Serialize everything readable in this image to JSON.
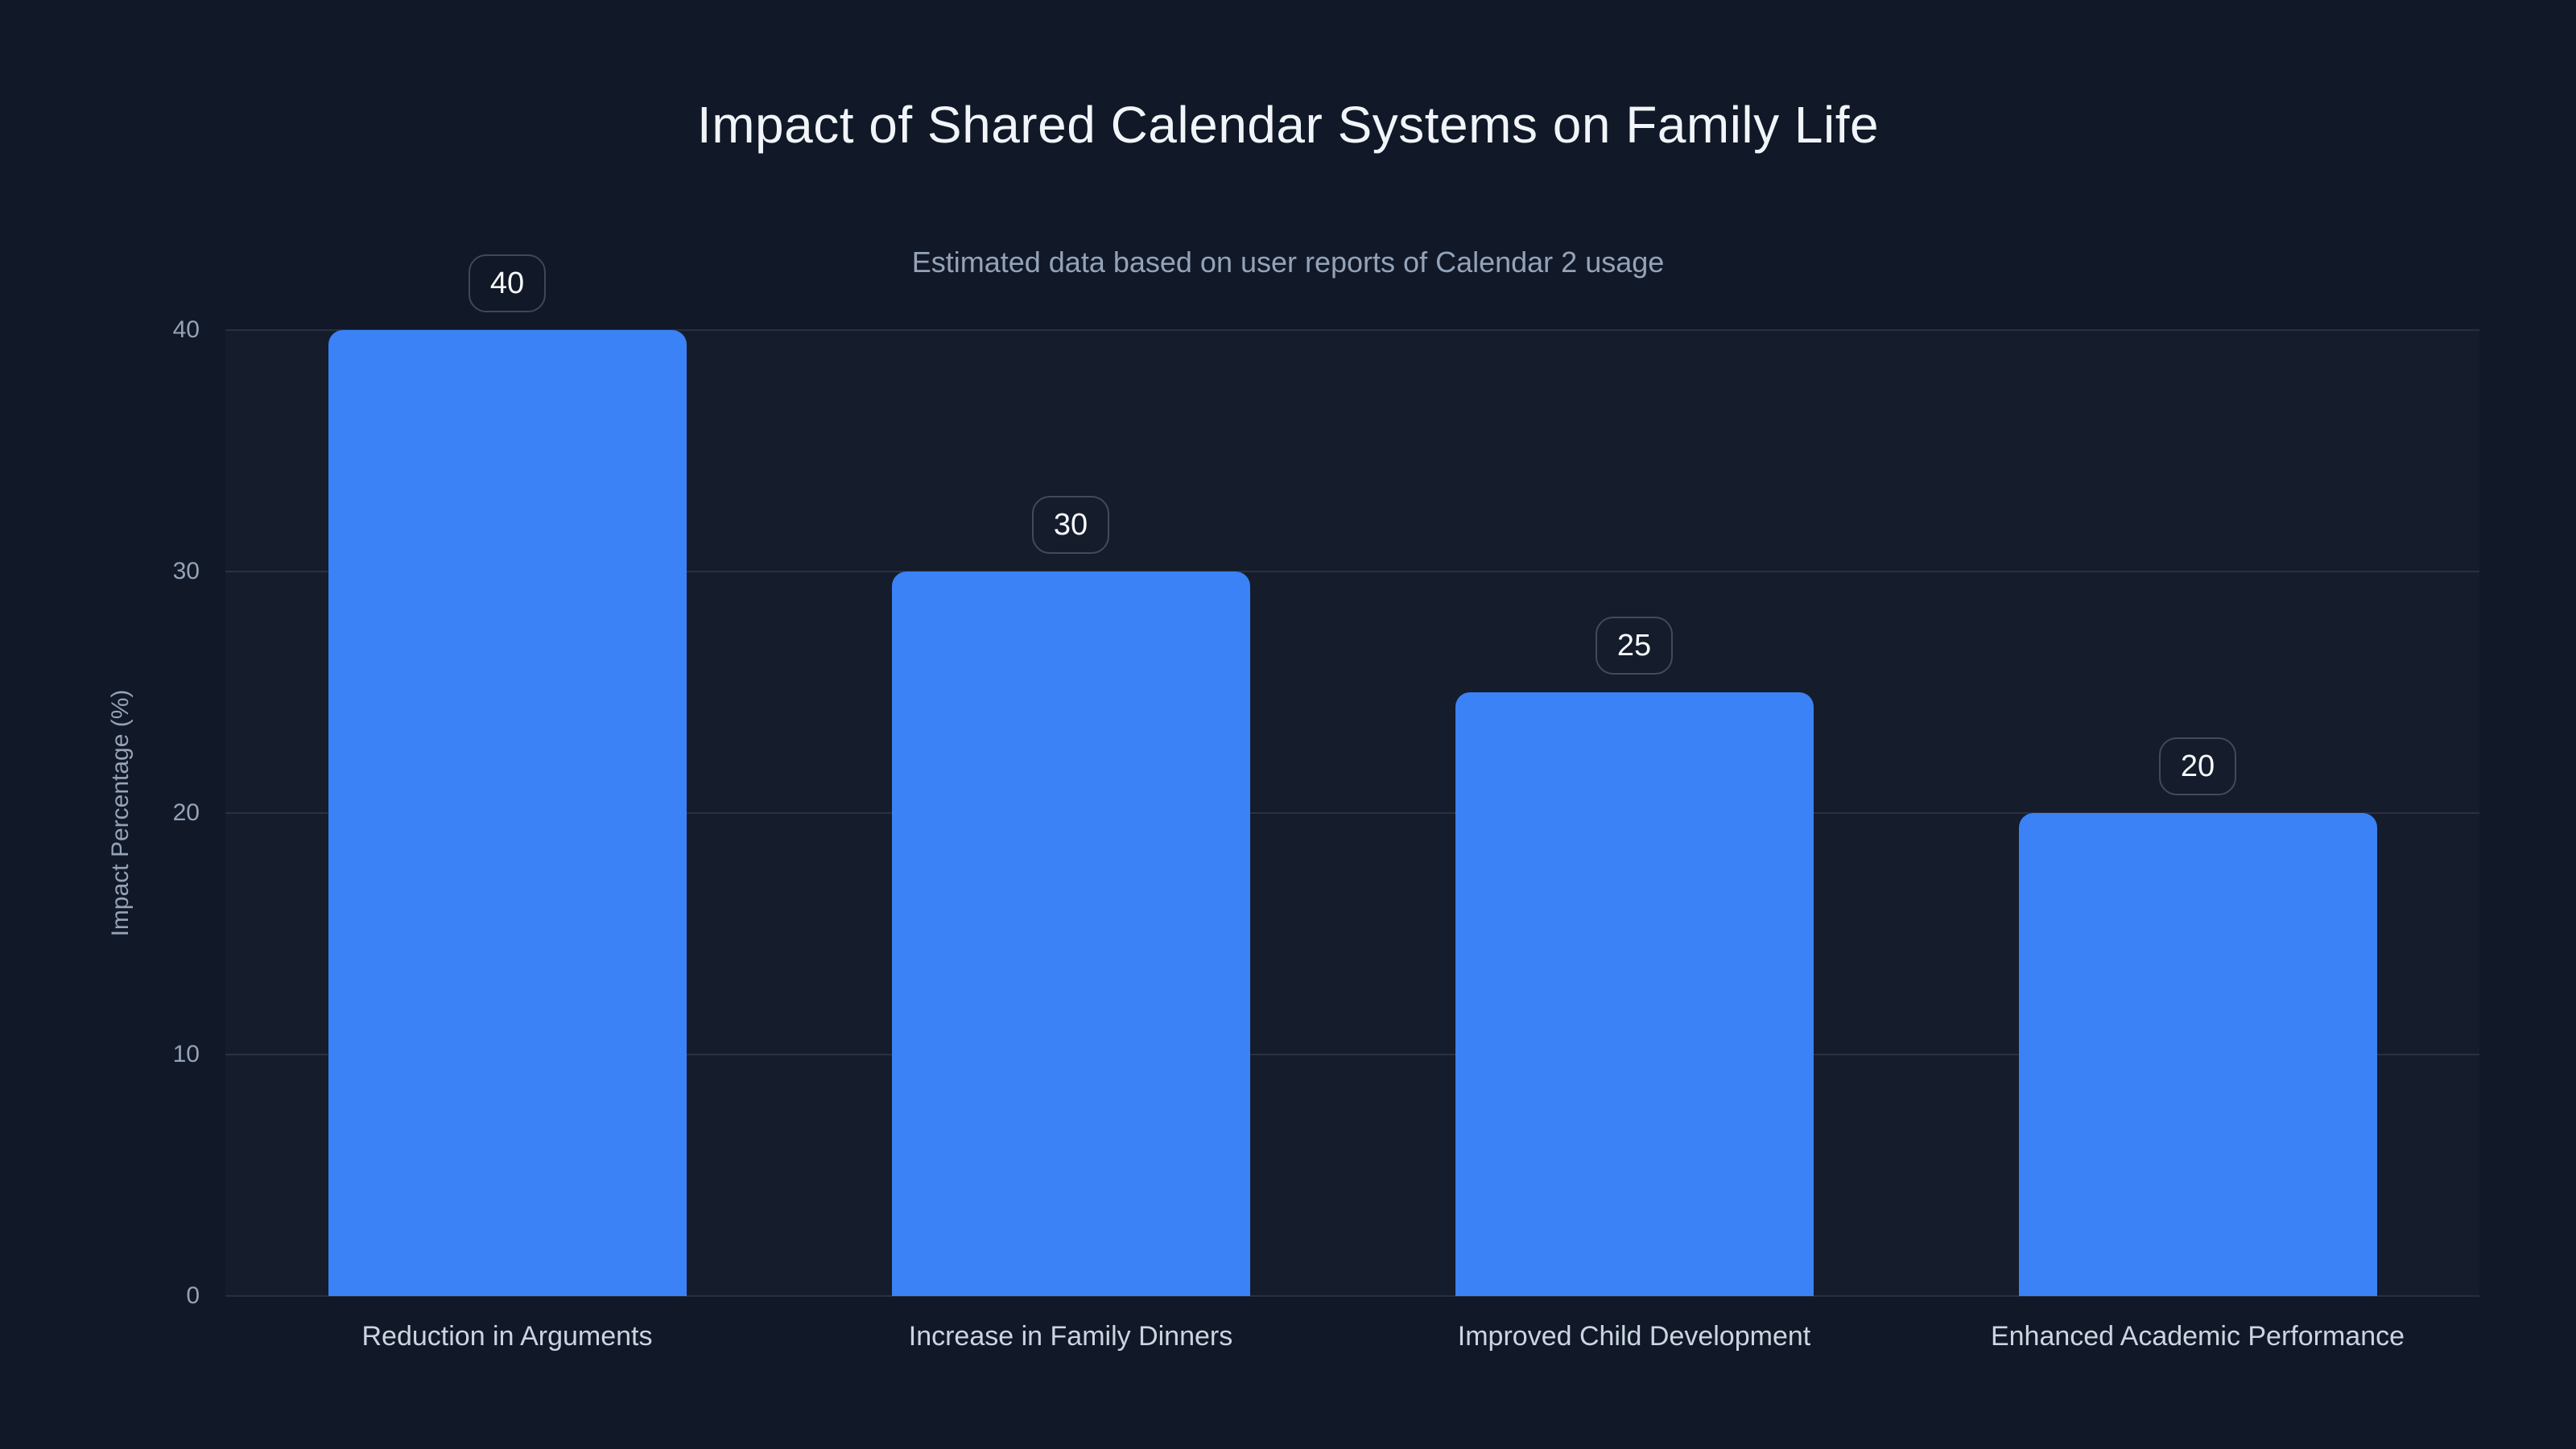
{
  "chart_data": {
    "type": "bar",
    "title": "Impact of Shared Calendar Systems on Family Life",
    "subtitle": "Estimated data based on user reports of Calendar 2 usage",
    "ylabel": "Impact Percentage (%)",
    "xlabel": "",
    "categories": [
      "Reduction in Arguments",
      "Increase in Family Dinners",
      "Improved Child Development",
      "Enhanced Academic Performance"
    ],
    "values": [
      40,
      30,
      25,
      20
    ],
    "data_labels": [
      "40",
      "30",
      "25",
      "20"
    ],
    "ylim": [
      0,
      40
    ],
    "yticks": [
      0,
      10,
      20,
      30,
      40
    ],
    "grid": true,
    "legend": "none"
  },
  "theme": {
    "background": "#111827",
    "bar_color": "#3b82f6",
    "grid_color": "rgba(148,163,184,0.16)",
    "title_color": "#f1f5f9",
    "subtitle_color": "#94a3b8",
    "tick_color": "#94a3b8",
    "category_color": "#cbd5e1",
    "badge_text_color": "#f8fafc",
    "badge_border_color": "rgba(148,163,184,0.35)"
  }
}
